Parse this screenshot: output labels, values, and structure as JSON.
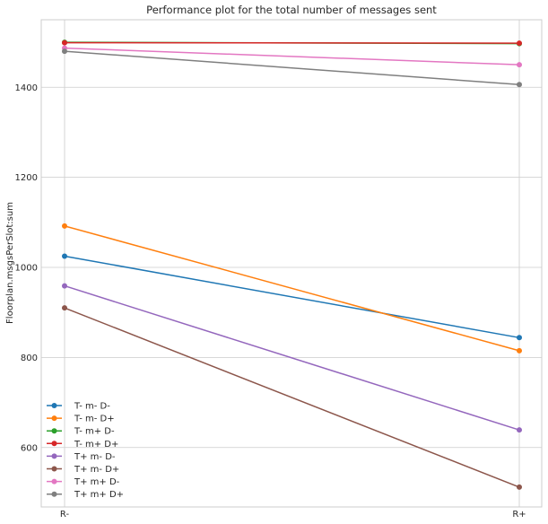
{
  "chart_data": {
    "type": "line",
    "title": "Performance plot for the total number of messages sent",
    "xlabel": "",
    "ylabel": "Floorplan.msgsPerSlot:sum",
    "categories": [
      "R-",
      "R+"
    ],
    "ylim": [
      468,
      1550
    ],
    "yticks": [
      600,
      800,
      1000,
      1200,
      1400
    ],
    "grid": true,
    "legend_position": "lower-left",
    "series": [
      {
        "name": "T- m- D-",
        "color": "#1f77b4",
        "values": [
          1025,
          844
        ]
      },
      {
        "name": "T- m- D+",
        "color": "#ff7f0e",
        "values": [
          1092,
          815
        ]
      },
      {
        "name": "T- m+ D-",
        "color": "#2ca02c",
        "values": [
          1500,
          1497
        ]
      },
      {
        "name": "T- m+ D+",
        "color": "#d62728",
        "values": [
          1499,
          1498
        ]
      },
      {
        "name": "T+ m- D-",
        "color": "#9467bd",
        "values": [
          959,
          639
        ]
      },
      {
        "name": "T+ m- D+",
        "color": "#8c564b",
        "values": [
          910,
          512
        ]
      },
      {
        "name": "T+ m+ D-",
        "color": "#e377c2",
        "values": [
          1487,
          1450
        ]
      },
      {
        "name": "T+ m+ D+",
        "color": "#7f7f7f",
        "values": [
          1480,
          1406
        ]
      }
    ]
  }
}
